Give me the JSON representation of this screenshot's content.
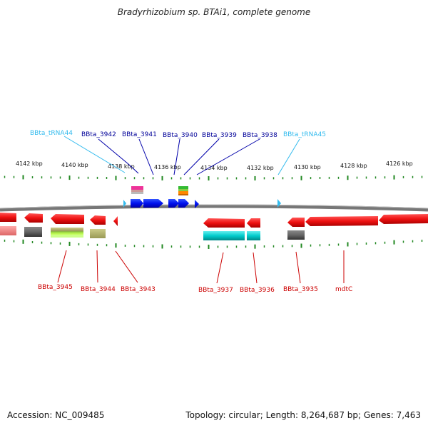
{
  "title": "Bradyrhizobium sp. BTAi1, complete genome",
  "footer": {
    "accession": "Accession: NC_009485",
    "summary": "Topology: circular; Length: 8,264,687 bp; Genes: 7,463"
  },
  "scale_labels": [
    "4142 kbp",
    "4140 kbp",
    "4138 kbp",
    "4136 kbp",
    "4134 kbp",
    "4132 kbp",
    "4130 kbp",
    "4128 kbp",
    "4126 kbp"
  ],
  "top_labels": {
    "trna44": "BBta_tRNA44",
    "g3942": "BBta_3942",
    "g3941": "BBta_3941",
    "g3940": "BBta_3940",
    "g3939": "BBta_3939",
    "g3938": "BBta_3938",
    "trna45": "BBta_tRNA45"
  },
  "bottom_labels": {
    "g3945": "BBta_3945",
    "g3944": "BBta_3944",
    "g3943": "BBta_3943",
    "g3937": "BBta_3937",
    "g3936": "BBta_3936",
    "g3935": "BBta_3935",
    "mdtC": "mdtC"
  },
  "colors": {
    "trna": "#33bbee",
    "forward_gene": "#0000dd",
    "reverse_gene": "#ee0000",
    "tick": "#228822",
    "backbone": "#888888"
  }
}
